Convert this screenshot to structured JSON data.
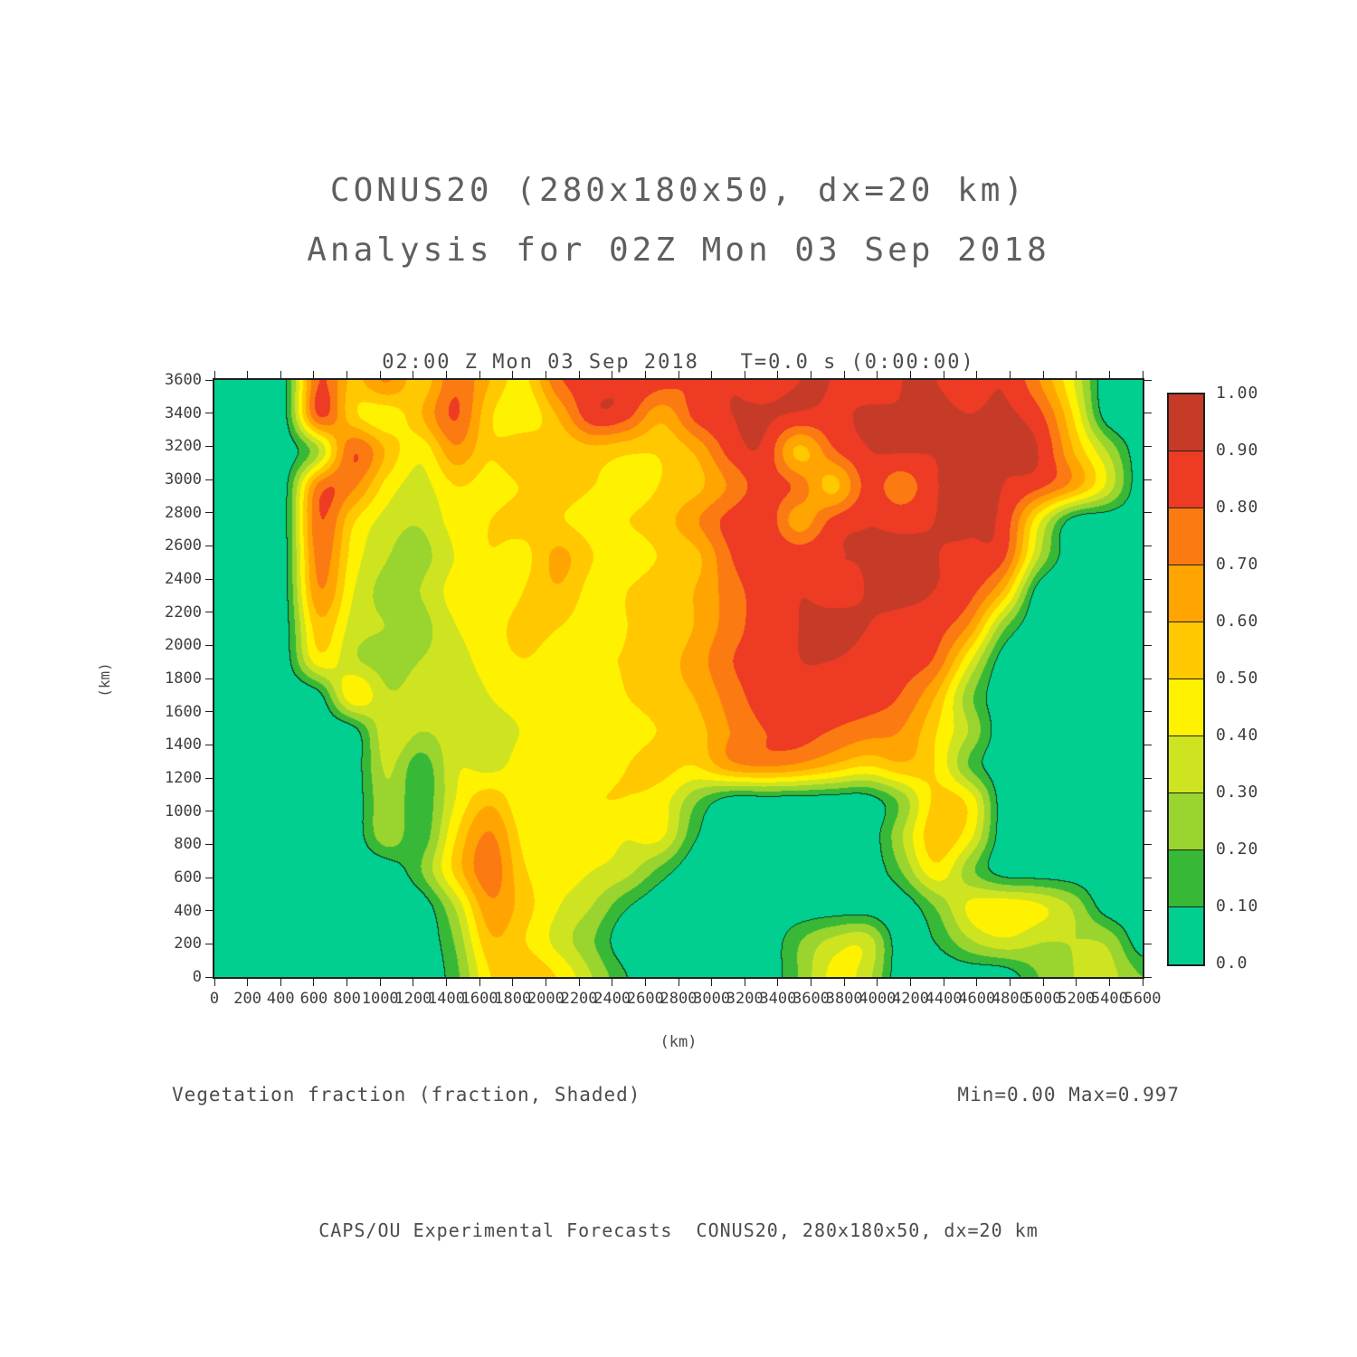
{
  "title": {
    "line1": "CONUS20 (280x180x50, dx=20 km)",
    "line2": "Analysis for 02Z Mon 03 Sep 2018"
  },
  "plot": {
    "time_header": "02:00 Z Mon 03 Sep 2018   T=0.0 s (0:00:00)",
    "x_axis_title": "(km)",
    "y_axis_title": "(km)"
  },
  "annotations": {
    "field_label": "Vegetation fraction (fraction, Shaded)",
    "minmax_label": "Min=0.00 Max=0.997",
    "footer": "CAPS/OU Experimental Forecasts  CONUS20, 280x180x50, dx=20 km"
  },
  "chart_data": {
    "type": "heatmap",
    "variable": "Vegetation fraction (fraction, Shaded)",
    "title": "CONUS20 (280x180x50, dx=20 km)",
    "subtitle": "Analysis for 02Z Mon 03 Sep 2018",
    "time_label": "02:00 Z Mon 03 Sep 2018   T=0.0 s (0:00:00)",
    "min": 0.0,
    "max": 0.997,
    "x_range_km": [
      0,
      5600
    ],
    "y_range_km": [
      0,
      3600
    ],
    "grid_cell_km": 200,
    "x_ticks": [
      0,
      200,
      400,
      600,
      800,
      1000,
      1200,
      1400,
      1600,
      1800,
      2000,
      2200,
      2400,
      2600,
      2800,
      3000,
      3200,
      3400,
      3600,
      3800,
      4000,
      4200,
      4400,
      4600,
      4800,
      5000,
      5200,
      5400,
      5600
    ],
    "y_ticks": [
      0,
      200,
      400,
      600,
      800,
      1000,
      1200,
      1400,
      1600,
      1800,
      2000,
      2200,
      2400,
      2600,
      2800,
      3000,
      3200,
      3400,
      3600
    ],
    "levels": [
      0.0,
      0.1,
      0.2,
      0.3,
      0.4,
      0.5,
      0.6,
      0.7,
      0.8,
      0.9,
      1.0
    ],
    "colorbar_labels_top_to_bottom": [
      "1.00",
      "0.90",
      "0.80",
      "0.70",
      "0.60",
      "0.50",
      "0.40",
      "0.30",
      "0.20",
      "0.10",
      "0.0"
    ],
    "colors_low_to_high": [
      "#00CF90",
      "#37B937",
      "#9AD42E",
      "#CFE420",
      "#FFF200",
      "#FFC800",
      "#FFA400",
      "#FB7B12",
      "#EE3B24",
      "#C53B28"
    ],
    "coastline_color": "#123A22",
    "values_top_to_bottom": [
      [
        0,
        0,
        0,
        0.85,
        0.55,
        0.75,
        0.5,
        0.8,
        0.6,
        0.45,
        0.8,
        0.85,
        0.9,
        0.85,
        0.8,
        0.9,
        0.85,
        0.9,
        0.9,
        0.85,
        0.9,
        0.9,
        0.85,
        0.9,
        0.7,
        0.4,
        0,
        0
      ],
      [
        0,
        0,
        0,
        0.9,
        0.5,
        0.4,
        0.6,
        0.85,
        0.5,
        0.4,
        0.6,
        0.9,
        0.85,
        0.6,
        0.85,
        0.9,
        0.92,
        0.9,
        0.88,
        0.92,
        0.9,
        0.92,
        0.9,
        0.92,
        0.85,
        0.5,
        0,
        0
      ],
      [
        0,
        0,
        0,
        0.2,
        0.85,
        0.6,
        0.4,
        0.7,
        0.5,
        0.6,
        0.5,
        0.55,
        0.5,
        0.5,
        0.6,
        0.85,
        0.9,
        0.5,
        0.8,
        0.9,
        0.92,
        0.9,
        0.92,
        0.9,
        0.92,
        0.6,
        0.3,
        0
      ],
      [
        0,
        0,
        0,
        0.8,
        0.75,
        0.45,
        0.35,
        0.5,
        0.45,
        0.5,
        0.55,
        0.5,
        0.45,
        0.5,
        0.55,
        0.7,
        0.85,
        0.8,
        0.5,
        0.85,
        0.7,
        0.9,
        0.92,
        0.9,
        0.85,
        0.7,
        0.4,
        0
      ],
      [
        0,
        0,
        0,
        0.85,
        0.5,
        0.35,
        0.3,
        0.45,
        0.5,
        0.55,
        0.5,
        0.45,
        0.5,
        0.55,
        0.7,
        0.85,
        0.9,
        0.6,
        0.85,
        0.9,
        0.88,
        0.9,
        0.92,
        0.88,
        0.4,
        0,
        0,
        0
      ],
      [
        0,
        0,
        0,
        0.8,
        0.45,
        0.3,
        0.25,
        0.4,
        0.5,
        0.45,
        0.65,
        0.5,
        0.45,
        0.5,
        0.55,
        0.8,
        0.9,
        0.88,
        0.9,
        0.9,
        0.92,
        0.9,
        0.88,
        0.85,
        0.3,
        0,
        0,
        0
      ],
      [
        0,
        0,
        0,
        0.75,
        0.4,
        0.25,
        0.3,
        0.45,
        0.4,
        0.5,
        0.6,
        0.45,
        0.5,
        0.55,
        0.6,
        0.75,
        0.85,
        0.9,
        0.88,
        0.9,
        0.92,
        0.9,
        0.85,
        0.6,
        0,
        0,
        0,
        0
      ],
      [
        0,
        0,
        0,
        0.6,
        0.35,
        0.3,
        0.25,
        0.4,
        0.45,
        0.55,
        0.5,
        0.45,
        0.5,
        0.5,
        0.6,
        0.75,
        0.85,
        0.9,
        0.92,
        0.9,
        0.88,
        0.85,
        0.7,
        0.2,
        0,
        0,
        0,
        0
      ],
      [
        0,
        0,
        0,
        0.5,
        0.3,
        0.25,
        0.3,
        0.35,
        0.45,
        0.5,
        0.45,
        0.5,
        0.5,
        0.55,
        0.65,
        0.8,
        0.85,
        0.9,
        0.9,
        0.88,
        0.85,
        0.8,
        0.4,
        0,
        0,
        0,
        0,
        0
      ],
      [
        0,
        0,
        0,
        0,
        0.55,
        0.3,
        0.35,
        0.3,
        0.4,
        0.45,
        0.5,
        0.45,
        0.5,
        0.55,
        0.6,
        0.75,
        0.85,
        0.88,
        0.85,
        0.85,
        0.8,
        0.6,
        0.2,
        0,
        0,
        0,
        0,
        0
      ],
      [
        0,
        0,
        0,
        0,
        0,
        0.4,
        0.3,
        0.35,
        0.35,
        0.4,
        0.45,
        0.4,
        0.45,
        0.5,
        0.55,
        0.7,
        0.8,
        0.85,
        0.8,
        0.75,
        0.7,
        0.5,
        0.3,
        0,
        0,
        0,
        0,
        0
      ],
      [
        0,
        0,
        0,
        0,
        0,
        0.35,
        0.1,
        0.4,
        0.35,
        0.45,
        0.5,
        0.45,
        0.5,
        0.55,
        0.5,
        0.7,
        0.75,
        0.7,
        0.6,
        0.5,
        0.6,
        0.5,
        0.15,
        0,
        0,
        0,
        0,
        0
      ],
      [
        0,
        0,
        0,
        0,
        0,
        0.3,
        0.1,
        0.4,
        0.6,
        0.4,
        0.45,
        0.5,
        0.5,
        0.45,
        0.2,
        0,
        0,
        0,
        0,
        0,
        0.2,
        0.55,
        0.5,
        0,
        0,
        0,
        0,
        0
      ],
      [
        0,
        0,
        0,
        0,
        0,
        0.3,
        0.1,
        0.5,
        0.75,
        0.45,
        0.4,
        0.45,
        0.4,
        0.45,
        0.1,
        0,
        0,
        0,
        0,
        0,
        0.3,
        0.6,
        0.45,
        0,
        0,
        0,
        0,
        0
      ],
      [
        0,
        0,
        0,
        0,
        0,
        0,
        0.2,
        0.55,
        0.8,
        0.5,
        0.45,
        0.4,
        0.35,
        0.15,
        0,
        0,
        0,
        0,
        0,
        0,
        0.2,
        0.5,
        0.2,
        0,
        0,
        0,
        0,
        0
      ],
      [
        0,
        0,
        0,
        0,
        0,
        0,
        0,
        0.3,
        0.7,
        0.55,
        0.4,
        0.3,
        0.1,
        0,
        0,
        0,
        0,
        0,
        0,
        0,
        0,
        0.2,
        0.45,
        0.5,
        0.45,
        0.3,
        0,
        0
      ],
      [
        0,
        0,
        0,
        0,
        0,
        0,
        0,
        0.2,
        0.6,
        0.5,
        0.35,
        0.2,
        0,
        0,
        0,
        0,
        0,
        0.2,
        0.35,
        0.4,
        0,
        0.1,
        0.3,
        0.4,
        0.3,
        0.3,
        0.3,
        0
      ],
      [
        0,
        0,
        0,
        0,
        0,
        0,
        0,
        0.15,
        0.5,
        0.6,
        0.5,
        0.3,
        0.1,
        0,
        0,
        0,
        0,
        0.2,
        0.45,
        0.35,
        0,
        0,
        0,
        0,
        0.2,
        0.3,
        0.35,
        0.2
      ]
    ]
  }
}
